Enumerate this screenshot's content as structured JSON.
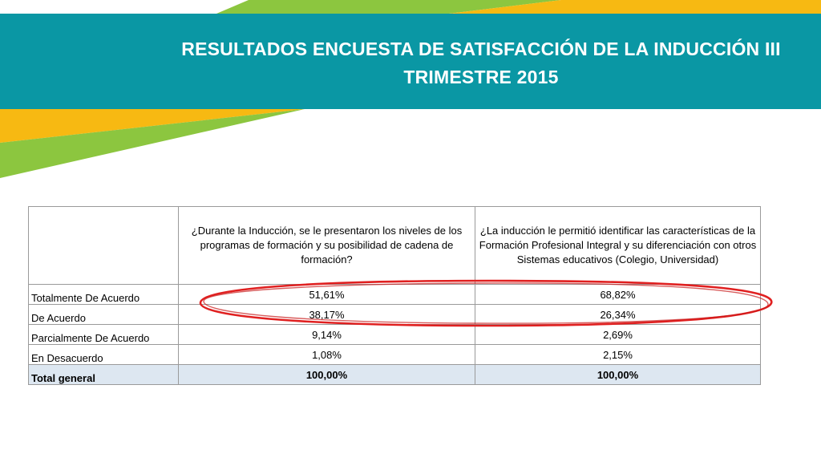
{
  "slide": {
    "title": "RESULTADOS ENCUESTA DE SATISFACCIÓN DE LA INDUCCIÓN III TRIMESTRE 2015"
  },
  "colors": {
    "header_teal": "#0a97a4",
    "accent_green": "#8cc63f",
    "accent_yellow": "#f7b912",
    "highlight_red": "#e02020",
    "total_row_fill": "#dde7f1"
  },
  "table": {
    "columns": [
      "",
      "¿Durante la Inducción, se le presentaron los niveles de los programas de formación y su posibilidad de cadena de formación?",
      "¿La inducción le permitió identificar las características de la Formación Profesional Integral y su diferenciación con otros Sistemas educativos (Colegio, Universidad)"
    ],
    "rows": [
      {
        "label": "Totalmente De Acuerdo",
        "q1": "51,61%",
        "q2": "68,82%"
      },
      {
        "label": "De Acuerdo",
        "q1": "38,17%",
        "q2": "26,34%"
      },
      {
        "label": "Parcialmente De Acuerdo",
        "q1": "9,14%",
        "q2": "2,69%"
      },
      {
        "label": "En Desacuerdo",
        "q1": "1,08%",
        "q2": "2,15%"
      }
    ],
    "total": {
      "label": "Total general",
      "q1": "100,00%",
      "q2": "100,00%"
    }
  }
}
